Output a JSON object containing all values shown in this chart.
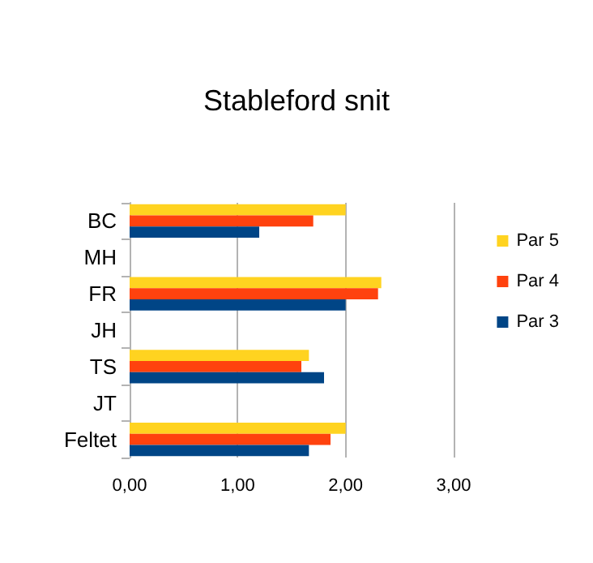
{
  "chart_data": {
    "type": "bar",
    "orientation": "horizontal",
    "title": "Stableford snit",
    "categories": [
      "BC",
      "MH",
      "FR",
      "JH",
      "TS",
      "JT",
      "Feltet"
    ],
    "series": [
      {
        "name": "Par 5",
        "color": "#ffd320",
        "values": [
          2.0,
          null,
          2.33,
          null,
          1.66,
          null,
          2.0
        ]
      },
      {
        "name": "Par 4",
        "color": "#ff420e",
        "values": [
          1.7,
          null,
          2.3,
          null,
          1.59,
          null,
          1.86
        ]
      },
      {
        "name": "Par 3",
        "color": "#004586",
        "values": [
          1.2,
          null,
          2.0,
          null,
          1.8,
          null,
          1.66
        ]
      }
    ],
    "xlim": [
      0,
      3
    ],
    "xticks": [
      {
        "value": 0,
        "label": "0,00"
      },
      {
        "value": 1,
        "label": "1,00"
      },
      {
        "value": 2,
        "label": "2,00"
      },
      {
        "value": 3,
        "label": "3,00"
      }
    ],
    "grid": "x",
    "legend": "right"
  }
}
